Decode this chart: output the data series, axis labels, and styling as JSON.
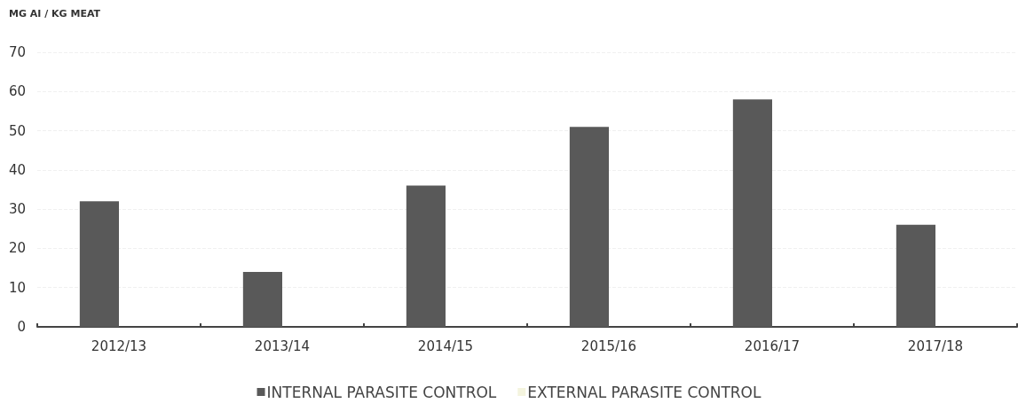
{
  "chart_data": {
    "type": "bar",
    "ylabel": "MG AI / KG MEAT",
    "categories": [
      "2012/13",
      "2013/14",
      "2014/15",
      "2015/16",
      "2016/17",
      "2017/18"
    ],
    "series": [
      {
        "name": "INTERNAL PARASITE CONTROL",
        "color": "#595959",
        "values": [
          32,
          14,
          36,
          51,
          58,
          26
        ]
      },
      {
        "name": "EXTERNAL PARASITE CONTROL",
        "color": "#f4f4de",
        "values": [
          null,
          null,
          null,
          null,
          null,
          null
        ]
      }
    ],
    "ylim": [
      0,
      70
    ],
    "yticks": [
      0,
      10,
      20,
      30,
      40,
      50,
      60,
      70
    ],
    "grid": "y",
    "legend": "bottom"
  }
}
